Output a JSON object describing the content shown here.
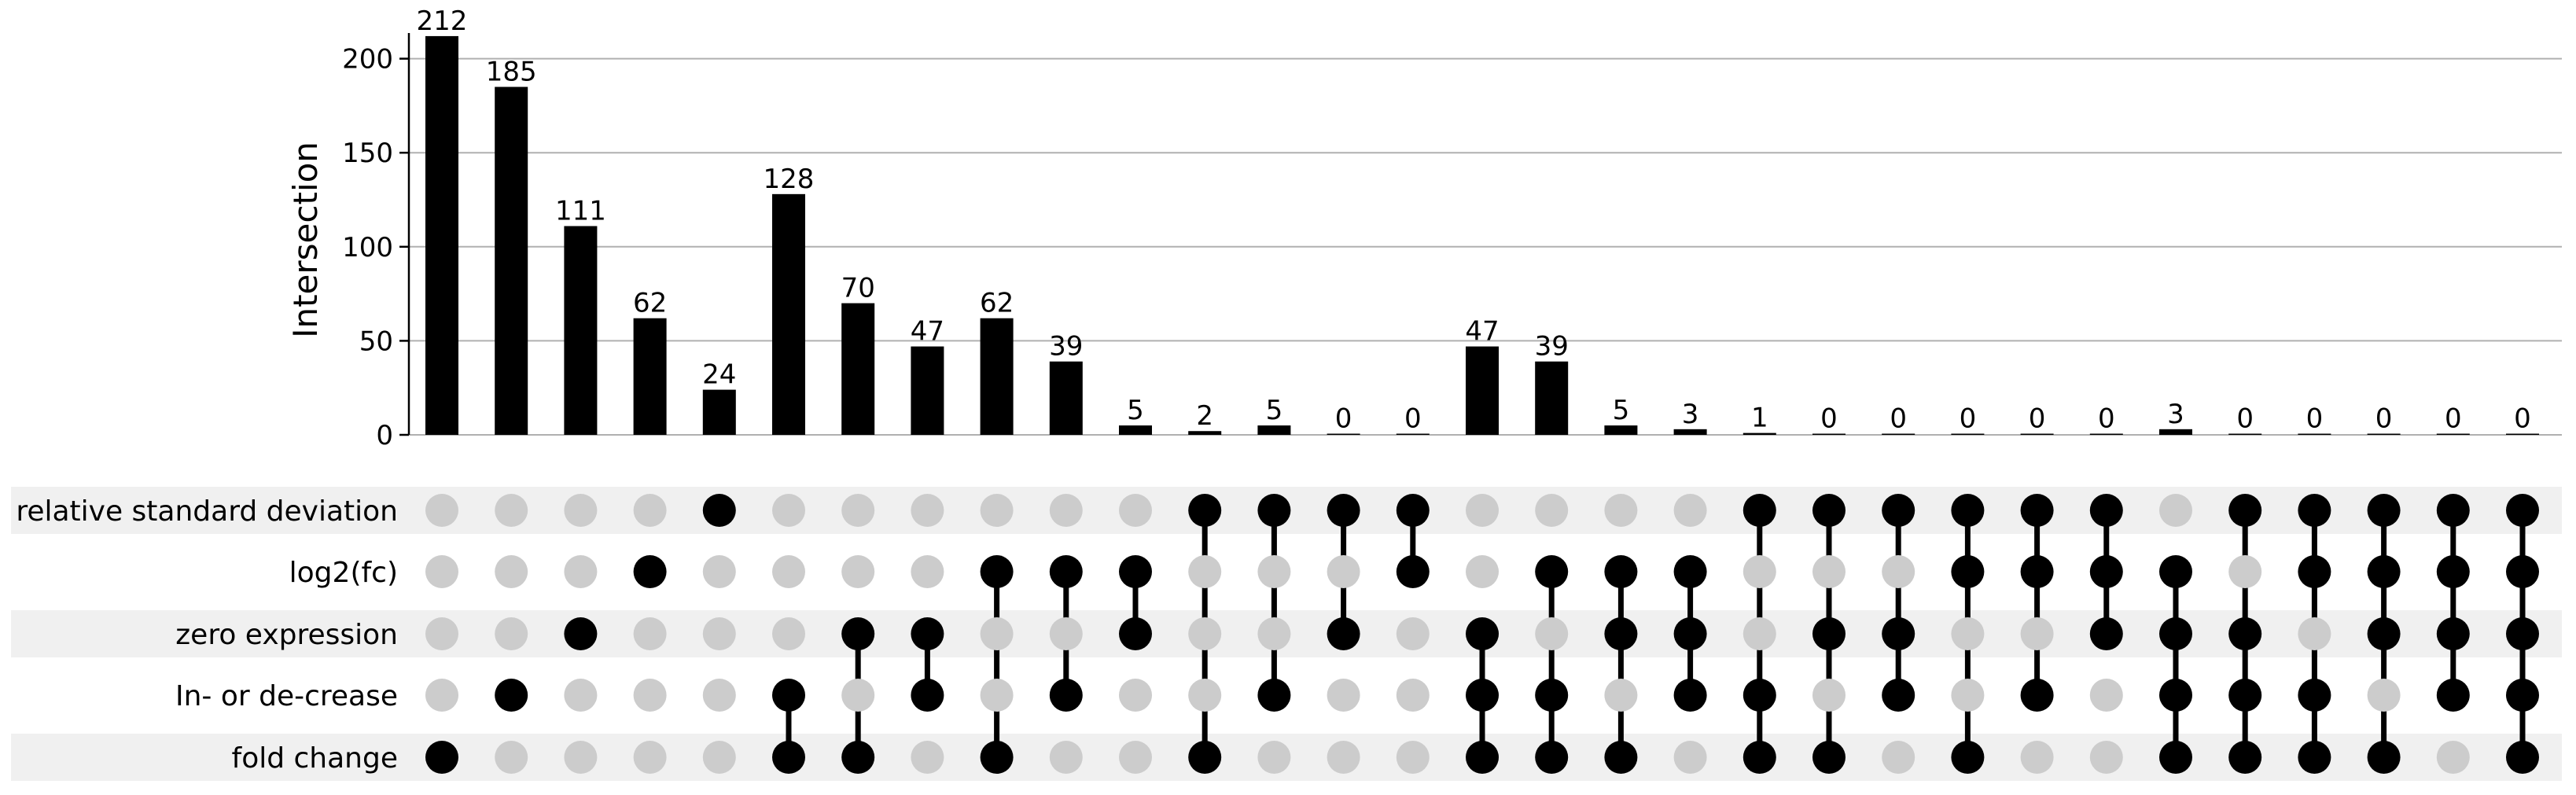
{
  "chart_data": {
    "type": "bar",
    "ylabel": "Intersection",
    "ylim": [
      0,
      222
    ],
    "yticks": [
      0,
      50,
      100,
      150,
      200
    ],
    "grid": true,
    "sets": [
      "relative standard deviation",
      "log2(fc)",
      "zero expression",
      "In- or de-crease",
      "fold change"
    ],
    "values": [
      212,
      185,
      111,
      62,
      24,
      128,
      70,
      47,
      62,
      39,
      5,
      2,
      5,
      0,
      0,
      47,
      39,
      5,
      3,
      1,
      0,
      0,
      0,
      0,
      0,
      3,
      0,
      0,
      0,
      0,
      0
    ],
    "value_labels": [
      "212",
      "185",
      "111",
      "62",
      "24",
      "128",
      "70",
      "47",
      "62",
      "39",
      "5",
      "2",
      "5",
      "0",
      "0",
      "47",
      "39",
      "5",
      "3",
      "1",
      "0",
      "0",
      "0",
      "0",
      "0",
      "3",
      "0",
      "0",
      "0",
      "0",
      "0"
    ],
    "membership": [
      [
        4
      ],
      [
        3
      ],
      [
        2
      ],
      [
        1
      ],
      [
        0
      ],
      [
        3,
        4
      ],
      [
        2,
        4
      ],
      [
        2,
        3
      ],
      [
        1,
        4
      ],
      [
        1,
        3
      ],
      [
        1,
        2
      ],
      [
        0,
        4
      ],
      [
        0,
        3
      ],
      [
        0,
        2
      ],
      [
        0,
        1
      ],
      [
        2,
        3,
        4
      ],
      [
        1,
        3,
        4
      ],
      [
        1,
        2,
        4
      ],
      [
        1,
        2,
        3
      ],
      [
        0,
        3,
        4
      ],
      [
        0,
        2,
        4
      ],
      [
        0,
        2,
        3
      ],
      [
        0,
        1,
        4
      ],
      [
        0,
        1,
        3
      ],
      [
        0,
        1,
        2
      ],
      [
        1,
        2,
        3,
        4
      ],
      [
        0,
        2,
        3,
        4
      ],
      [
        0,
        1,
        3,
        4
      ],
      [
        0,
        1,
        2,
        4
      ],
      [
        0,
        1,
        2,
        3
      ],
      [
        0,
        1,
        2,
        3,
        4
      ]
    ],
    "colors": {
      "bar": "#000000",
      "dot_active": "#000000",
      "dot_inactive": "#cccccc",
      "row_shade": "#f0f0f0",
      "grid": "#b0b0b0"
    }
  }
}
